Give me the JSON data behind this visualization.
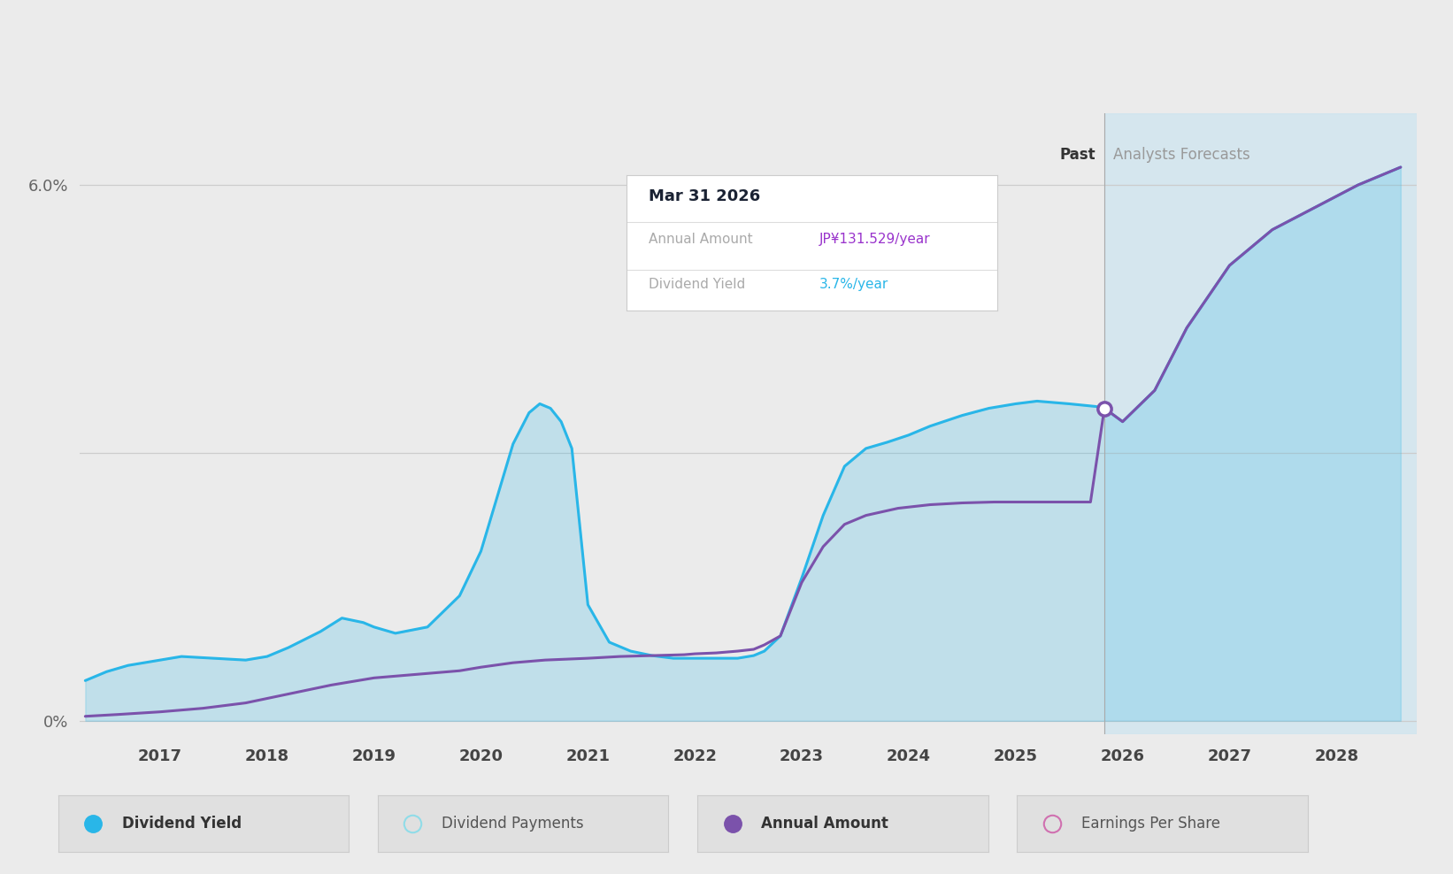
{
  "bg_color": "#ebebeb",
  "chart_bg_color": "#ebebeb",
  "forecast_bg_color": "#cde4f0",
  "grid_color": "#cccccc",
  "x_min": 2016.25,
  "x_max": 2028.75,
  "y_min": -0.15,
  "y_max": 6.8,
  "forecast_start": 2025.83,
  "forecast_end": 2028.75,
  "past_label": "Past",
  "forecast_label": "Analysts Forecasts",
  "xticks": [
    2017,
    2018,
    2019,
    2020,
    2021,
    2022,
    2023,
    2024,
    2025,
    2026,
    2027,
    2028
  ],
  "blue_color": "#29b6e8",
  "purple_color": "#7b52ab",
  "tooltip": {
    "title": "Mar 31 2026",
    "rows": [
      {
        "label": "Annual Amount",
        "value": "JP¥131.529/year",
        "value_color": "#9933cc"
      },
      {
        "label": "Dividend Yield",
        "value": "3.7%/year",
        "value_color": "#29b6e8"
      }
    ]
  },
  "dividend_yield_x": [
    2016.3,
    2016.5,
    2016.7,
    2016.9,
    2017.0,
    2017.2,
    2017.5,
    2017.8,
    2018.0,
    2018.2,
    2018.5,
    2018.7,
    2018.9,
    2019.0,
    2019.2,
    2019.5,
    2019.8,
    2020.0,
    2020.15,
    2020.3,
    2020.45,
    2020.55,
    2020.65,
    2020.75,
    2020.85,
    2021.0,
    2021.2,
    2021.4,
    2021.6,
    2021.8,
    2022.0,
    2022.2,
    2022.4,
    2022.55,
    2022.65,
    2022.8,
    2023.0,
    2023.2,
    2023.4,
    2023.6,
    2023.8,
    2024.0,
    2024.2,
    2024.5,
    2024.75,
    2025.0,
    2025.2,
    2025.5,
    2025.75,
    2025.83,
    2026.0,
    2026.3,
    2026.6,
    2027.0,
    2027.4,
    2027.8,
    2028.2,
    2028.6
  ],
  "dividend_yield_y": [
    0.45,
    0.55,
    0.62,
    0.66,
    0.68,
    0.72,
    0.7,
    0.68,
    0.72,
    0.82,
    1.0,
    1.15,
    1.1,
    1.05,
    0.98,
    1.05,
    1.4,
    1.9,
    2.5,
    3.1,
    3.45,
    3.55,
    3.5,
    3.35,
    3.05,
    1.3,
    0.88,
    0.78,
    0.73,
    0.7,
    0.7,
    0.7,
    0.7,
    0.73,
    0.78,
    0.95,
    1.6,
    2.3,
    2.85,
    3.05,
    3.12,
    3.2,
    3.3,
    3.42,
    3.5,
    3.55,
    3.58,
    3.55,
    3.52,
    3.5,
    3.35,
    3.7,
    4.4,
    5.1,
    5.5,
    5.75,
    6.0,
    6.2
  ],
  "annual_amount_x": [
    2016.3,
    2016.6,
    2017.0,
    2017.4,
    2017.8,
    2018.2,
    2018.6,
    2019.0,
    2019.4,
    2019.8,
    2020.0,
    2020.3,
    2020.6,
    2021.0,
    2021.3,
    2021.6,
    2021.9,
    2022.0,
    2022.2,
    2022.4,
    2022.55,
    2022.65,
    2022.8,
    2023.0,
    2023.2,
    2023.4,
    2023.6,
    2023.9,
    2024.2,
    2024.5,
    2024.8,
    2025.1,
    2025.4,
    2025.7,
    2025.83,
    2026.0,
    2026.3,
    2026.6,
    2027.0,
    2027.4,
    2027.8,
    2028.2,
    2028.6
  ],
  "annual_amount_y": [
    0.05,
    0.07,
    0.1,
    0.14,
    0.2,
    0.3,
    0.4,
    0.48,
    0.52,
    0.56,
    0.6,
    0.65,
    0.68,
    0.7,
    0.72,
    0.73,
    0.74,
    0.75,
    0.76,
    0.78,
    0.8,
    0.85,
    0.95,
    1.55,
    1.95,
    2.2,
    2.3,
    2.38,
    2.42,
    2.44,
    2.45,
    2.45,
    2.45,
    2.45,
    3.5,
    3.35,
    3.7,
    4.4,
    5.1,
    5.5,
    5.75,
    6.0,
    6.2
  ],
  "marker_x": 2025.83,
  "marker_y": 3.5,
  "legend_items": [
    {
      "label": "Dividend Yield",
      "color": "#29b6e8",
      "type": "filled_circle"
    },
    {
      "label": "Dividend Payments",
      "color": "#90dce8",
      "type": "open_circle"
    },
    {
      "label": "Annual Amount",
      "color": "#7b52ab",
      "type": "filled_circle"
    },
    {
      "label": "Earnings Per Share",
      "color": "#d070b0",
      "type": "open_circle"
    }
  ]
}
